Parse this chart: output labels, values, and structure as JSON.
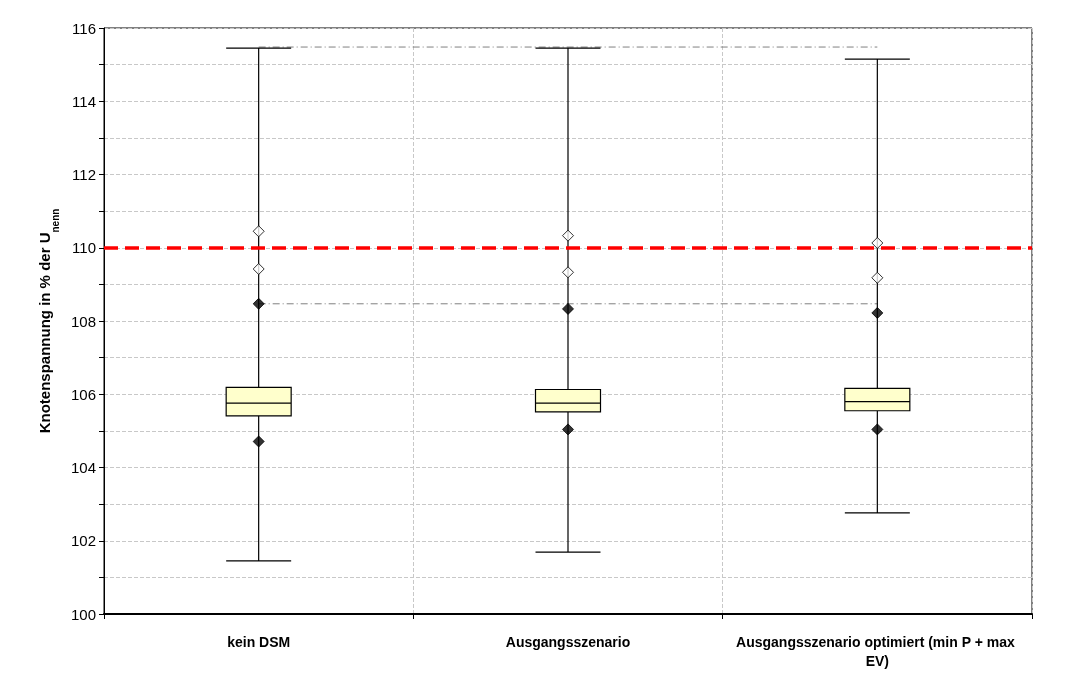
{
  "chart_data": {
    "type": "box",
    "ylabel": "Knotenspannung in % der U$_{nenn}$",
    "categories": [
      "kein DSM",
      "Ausgangsszenario",
      "Ausgangsszenario optimiert (min P + max EV)"
    ],
    "color": "#ffffcc",
    "boxes": [
      {
        "low": 101.45,
        "q1": 105.41,
        "median": 105.76,
        "q3": 106.19,
        "high": 115.45
      },
      {
        "low": 101.69,
        "q1": 105.52,
        "median": 105.76,
        "q3": 106.13,
        "high": 115.45
      },
      {
        "low": 102.76,
        "q1": 105.55,
        "median": 105.8,
        "q3": 106.16,
        "high": 115.15
      }
    ],
    "series": [
      {
        "type": "scatter",
        "marker": "diamond",
        "color": "#ffffff",
        "x": [
          "kein DSM",
          "Ausgangsszenario",
          "Ausgangsszenario optimiert (min P + max EV)"
        ],
        "values": [
          110.45,
          110.33,
          110.13
        ]
      },
      {
        "type": "scatter",
        "marker": "diamond",
        "color": "#ffffff",
        "x": [
          "kein DSM",
          "Ausgangsszenario",
          "Ausgangsszenario optimiert (min P + max EV)"
        ],
        "values": [
          109.42,
          109.33,
          109.18
        ]
      },
      {
        "type": "scatter",
        "marker": "diamond",
        "color": "#000000",
        "x": [
          "kein DSM",
          "Ausgangsszenario",
          "Ausgangsszenario optimiert (min P + max EV)"
        ],
        "values": [
          108.47,
          108.33,
          108.22
        ]
      },
      {
        "type": "scatter",
        "marker": "diamond",
        "color": "#000000",
        "x": [
          "kein DSM",
          "Ausgangsszenario",
          "Ausgangsszenario optimiert (min P + max EV)"
        ],
        "values": [
          104.71,
          105.04,
          105.04
        ]
      },
      {
        "type": "line",
        "color": "#808080",
        "line_style": "dashed",
        "x": [
          "kein DSM",
          "Ausgangsszenario optimiert (min P + max EV)"
        ],
        "values": [
          115.48,
          115.48
        ]
      },
      {
        "type": "line",
        "color": "#808080",
        "line_style": "dashed",
        "x": [
          "kein DSM",
          "Ausgangsszenario optimiert (min P + max EV)"
        ],
        "values": [
          108.47,
          108.47
        ]
      }
    ],
    "ref_lines": [
      {
        "axis": "y",
        "value": 110,
        "color": "#ff0000",
        "line_style": "dashed"
      }
    ],
    "ylim": [
      100,
      116
    ],
    "yticks": [
      100,
      {
        "value": 101,
        "label": null
      },
      102,
      {
        "value": 103,
        "label": null
      },
      104,
      {
        "value": 105,
        "label": null
      },
      106,
      {
        "value": 107,
        "label": null
      },
      108,
      {
        "value": 109,
        "label": null
      },
      110,
      {
        "value": 111,
        "label": null
      },
      112,
      {
        "value": 113,
        "label": null
      },
      114,
      {
        "value": 115,
        "label": null
      },
      116
    ],
    "grid": true
  }
}
